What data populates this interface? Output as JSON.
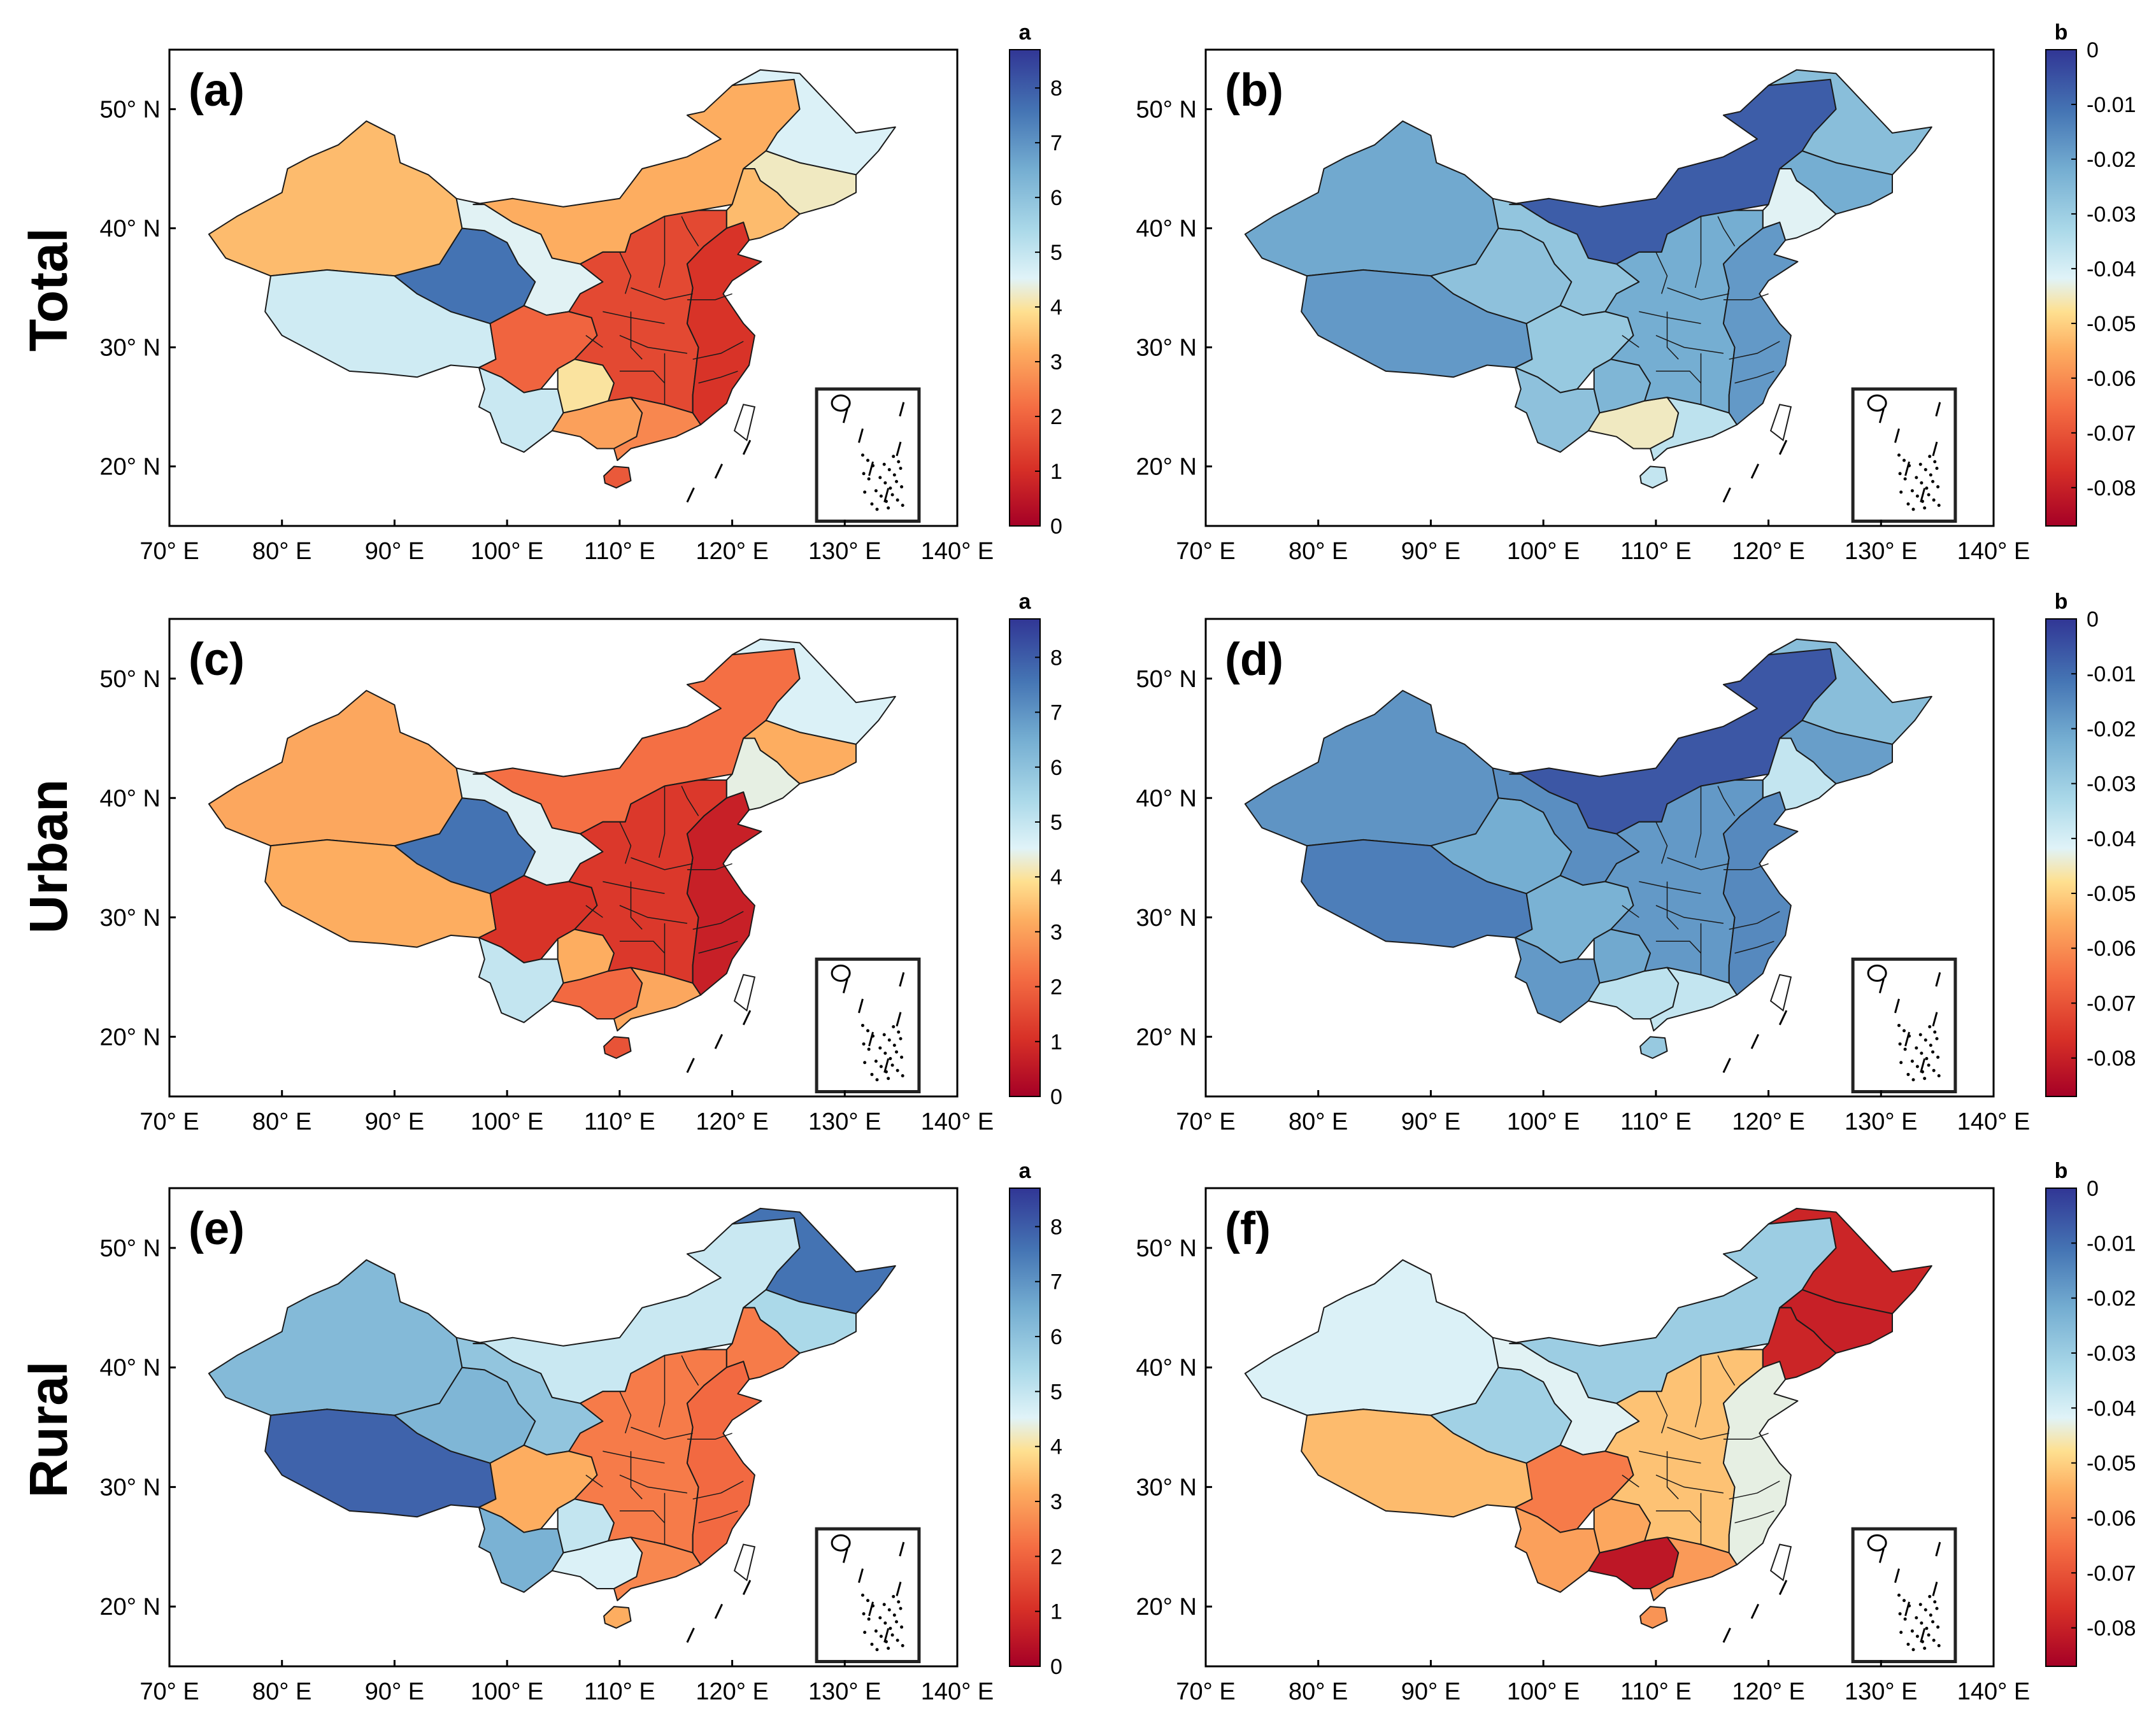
{
  "figure": {
    "row_labels": [
      "Total",
      "Urban",
      "Rural"
    ]
  },
  "chart_data": [
    {
      "type": "choropleth-map",
      "panel": "(a)",
      "row": "Total",
      "colorbar_title": "a",
      "colorbar_range": [
        0,
        8.7
      ],
      "colorbar_ticks": [
        "0",
        "1",
        "2",
        "3",
        "4",
        "5",
        "6",
        "7",
        "8"
      ],
      "xlim": [
        70,
        140
      ],
      "ylim": [
        15,
        55
      ],
      "x_ticks": [
        "70° E",
        "80° E",
        "90° E",
        "100° E",
        "110° E",
        "120° E",
        "130° E",
        "140° E"
      ],
      "y_ticks": [
        "20° N",
        "30° N",
        "40° N",
        "50° N"
      ],
      "regions": {
        "Xinjiang": 3.4,
        "Tibet": 4.8,
        "Qinghai": 7.6,
        "Gansu": 4.5,
        "InnerMongolia": 3.2,
        "Heilongjiang": 4.6,
        "Jilin": 4.2,
        "Liaoning": 3.4,
        "Sichuan": 2.0,
        "Yunnan": 4.9,
        "Guizhou": 4.0,
        "Guangxi": 3.0,
        "Guangdong": 2.6,
        "Hainan": 1.8,
        "Central": 1.5,
        "East": 1.1
      }
    },
    {
      "type": "choropleth-map",
      "panel": "(b)",
      "row": "Total",
      "colorbar_title": "b",
      "colorbar_range": [
        -0.087,
        0
      ],
      "colorbar_ticks": [
        "0",
        "-0.01",
        "-0.02",
        "-0.03",
        "-0.04",
        "-0.05",
        "-0.06",
        "-0.07",
        "-0.08"
      ],
      "xlim": [
        70,
        140
      ],
      "ylim": [
        15,
        55
      ],
      "x_ticks": [
        "70° E",
        "80° E",
        "90° E",
        "100° E",
        "110° E",
        "120° E",
        "130° E",
        "140° E"
      ],
      "y_ticks": [
        "20° N",
        "30° N",
        "40° N",
        "50° N"
      ],
      "regions": {
        "Xinjiang": -0.021,
        "Tibet": -0.018,
        "Qinghai": -0.027,
        "Gansu": -0.028,
        "InnerMongolia": -0.007,
        "Heilongjiang": -0.026,
        "Jilin": -0.022,
        "Liaoning": -0.042,
        "Sichuan": -0.029,
        "Yunnan": -0.027,
        "Guizhou": -0.024,
        "Guangxi": -0.045,
        "Guangdong": -0.036,
        "Hainan": -0.037,
        "Central": -0.022,
        "East": -0.018
      }
    },
    {
      "type": "choropleth-map",
      "panel": "(c)",
      "row": "Urban",
      "colorbar_title": "a",
      "colorbar_range": [
        0,
        8.7
      ],
      "colorbar_ticks": [
        "0",
        "1",
        "2",
        "3",
        "4",
        "5",
        "6",
        "7",
        "8"
      ],
      "xlim": [
        70,
        140
      ],
      "ylim": [
        15,
        55
      ],
      "x_ticks": [
        "70° E",
        "80° E",
        "90° E",
        "100° E",
        "110° E",
        "120° E",
        "130° E",
        "140° E"
      ],
      "y_ticks": [
        "20° N",
        "30° N",
        "40° N",
        "50° N"
      ],
      "regions": {
        "Xinjiang": 3.1,
        "Tibet": 3.2,
        "Qinghai": 7.6,
        "Gansu": 4.5,
        "InnerMongolia": 2.2,
        "Heilongjiang": 4.6,
        "Jilin": 3.2,
        "Liaoning": 4.4,
        "Sichuan": 1.1,
        "Yunnan": 5.0,
        "Guizhou": 3.2,
        "Guangxi": 2.1,
        "Guangdong": 3.1,
        "Hainan": 1.7,
        "Central": 1.2,
        "East": 0.7
      }
    },
    {
      "type": "choropleth-map",
      "panel": "(d)",
      "row": "Urban",
      "colorbar_title": "b",
      "colorbar_range": [
        -0.087,
        0
      ],
      "colorbar_ticks": [
        "0",
        "-0.01",
        "-0.02",
        "-0.03",
        "-0.04",
        "-0.05",
        "-0.06",
        "-0.07",
        "-0.08"
      ],
      "xlim": [
        70,
        140
      ],
      "ylim": [
        15,
        55
      ],
      "x_ticks": [
        "70° E",
        "80° E",
        "90° E",
        "100° E",
        "110° E",
        "120° E",
        "130° E",
        "140° E"
      ],
      "y_ticks": [
        "20° N",
        "30° N",
        "40° N",
        "50° N"
      ],
      "regions": {
        "Xinjiang": -0.017,
        "Tibet": -0.013,
        "Qinghai": -0.022,
        "Gansu": -0.016,
        "InnerMongolia": -0.006,
        "Heilongjiang": -0.026,
        "Jilin": -0.019,
        "Liaoning": -0.037,
        "Sichuan": -0.023,
        "Yunnan": -0.018,
        "Guizhou": -0.021,
        "Guangxi": -0.036,
        "Guangdong": -0.037,
        "Hainan": -0.029,
        "Central": -0.018,
        "East": -0.015
      }
    },
    {
      "type": "choropleth-map",
      "panel": "(e)",
      "row": "Rural",
      "colorbar_title": "a",
      "colorbar_range": [
        0,
        8.7
      ],
      "colorbar_ticks": [
        "0",
        "1",
        "2",
        "3",
        "4",
        "5",
        "6",
        "7",
        "8"
      ],
      "xlim": [
        70,
        140
      ],
      "ylim": [
        15,
        55
      ],
      "x_ticks": [
        "70° E",
        "80° E",
        "90° E",
        "100° E",
        "110° E",
        "120° E",
        "130° E",
        "140° E"
      ],
      "y_ticks": [
        "20° N",
        "30° N",
        "40° N",
        "50° N"
      ],
      "regions": {
        "Xinjiang": 6.2,
        "Tibet": 7.9,
        "Qinghai": 6.3,
        "Gansu": 5.9,
        "InnerMongolia": 4.9,
        "Heilongjiang": 7.6,
        "Jilin": 5.4,
        "Liaoning": 2.4,
        "Sichuan": 3.2,
        "Yunnan": 6.4,
        "Guizhou": 5.0,
        "Guangxi": 4.6,
        "Guangdong": 2.6,
        "Hainan": 3.2,
        "Central": 2.4,
        "East": 2.1
      }
    },
    {
      "type": "choropleth-map",
      "panel": "(f)",
      "row": "Rural",
      "colorbar_title": "b",
      "colorbar_range": [
        -0.087,
        0
      ],
      "colorbar_ticks": [
        "0",
        "-0.01",
        "-0.02",
        "-0.03",
        "-0.04",
        "-0.05",
        "-0.06",
        "-0.07",
        "-0.08"
      ],
      "xlim": [
        70,
        140
      ],
      "ylim": [
        15,
        55
      ],
      "x_ticks": [
        "70° E",
        "80° E",
        "90° E",
        "100° E",
        "110° E",
        "120° E",
        "130° E",
        "140° E"
      ],
      "y_ticks": [
        "20° N",
        "30° N",
        "40° N",
        "50° N"
      ],
      "regions": {
        "Xinjiang": -0.041,
        "Tibet": -0.053,
        "Qinghai": -0.031,
        "Gansu": -0.042,
        "InnerMongolia": -0.03,
        "Heilongjiang": -0.079,
        "Jilin": -0.08,
        "Liaoning": -0.079,
        "Sichuan": -0.063,
        "Yunnan": -0.057,
        "Guizhou": -0.056,
        "Guangxi": -0.082,
        "Guangdong": -0.058,
        "Hainan": -0.059,
        "Central": -0.052,
        "East": -0.043
      }
    }
  ]
}
